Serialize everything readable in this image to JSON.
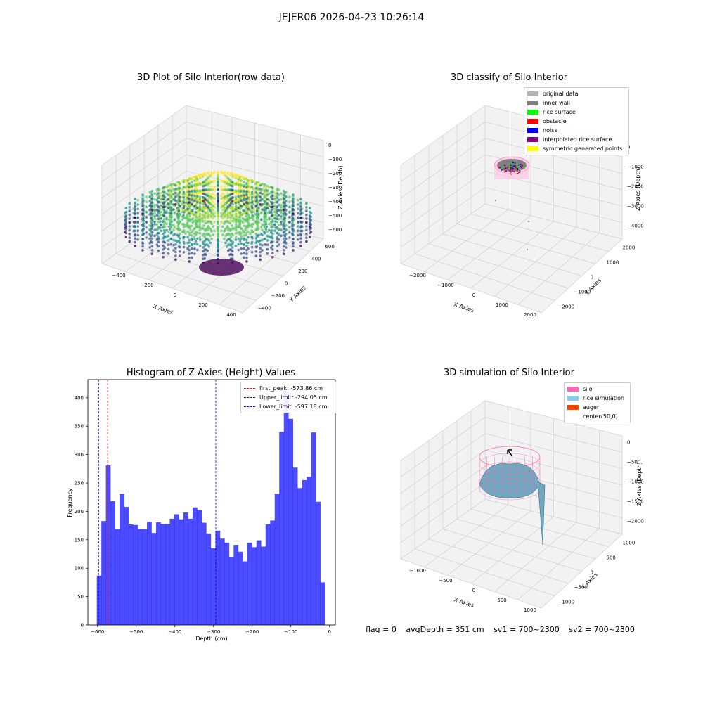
{
  "suptitle": "JEJER06 2026-04-23 10:26:14",
  "panels": {
    "raw": {
      "title": "3D Plot of Silo Interior(row data)",
      "xlabel": "X Axies",
      "ylabel": "Y Axies",
      "zlabel": "Z Axies (Depth)",
      "xticks": [
        "−400",
        "−200",
        "0",
        "200",
        "400"
      ],
      "yticks": [
        "−400",
        "−200",
        "0",
        "200",
        "400",
        "600"
      ],
      "zticks": [
        "0",
        "−100",
        "−200",
        "−300",
        "−400",
        "−500",
        "−600"
      ]
    },
    "classify": {
      "title": "3D classify of Silo Interior",
      "xlabel": "X Axies",
      "ylabel": "Y Axies",
      "zlabel": "Z Axies (Depth)",
      "xticks": [
        "−2000",
        "−1000",
        "0",
        "1000",
        "2000"
      ],
      "yticks": [
        "−2000",
        "−1000",
        "0",
        "1000",
        "2000"
      ],
      "zticks": [
        "0",
        "−1000",
        "−2000",
        "−3000",
        "−4000"
      ],
      "legend": [
        {
          "label": "original data",
          "color": "#b3b3b3"
        },
        {
          "label": "inner wall",
          "color": "#808080"
        },
        {
          "label": "rice surface",
          "color": "#00ff00"
        },
        {
          "label": "obstacle",
          "color": "#ff0000"
        },
        {
          "label": "noise",
          "color": "#0000ff"
        },
        {
          "label": "interpolated rice surface",
          "color": "#800080"
        },
        {
          "label": "symmetric generated points",
          "color": "#ffff00"
        }
      ]
    },
    "simulation": {
      "title": "3D simulation of Silo Interior",
      "xlabel": "X Axies",
      "ylabel": "Y Axies",
      "zlabel": "Z Axies (Depth)",
      "xticks": [
        "−1000",
        "−500",
        "0",
        "500",
        "1000"
      ],
      "yticks": [
        "−1000",
        "−500",
        "0",
        "500",
        "1000"
      ],
      "zticks": [
        "0",
        "−500",
        "−1000",
        "−1500",
        "−2000"
      ],
      "legend": [
        {
          "label": "silo",
          "color": "#ff69b4"
        },
        {
          "label": "rice simulation",
          "color": "#87ceeb"
        },
        {
          "label": "auger",
          "color": "#ff4500"
        },
        {
          "label": "center(50,0)",
          "color": "#ffffff"
        }
      ]
    }
  },
  "status": {
    "flag": "flag = 0",
    "avg": "avgDepth = 351 cm",
    "sv1": "sv1 = 700~2300",
    "sv2": "sv2 = 700~2300"
  },
  "chart_data": [
    {
      "type": "bar",
      "title": "Histogram of Z-Axies (Height) Values",
      "xlabel": "Depth (cm)",
      "ylabel": "Frequency",
      "bar_color": "#0000ff",
      "xlim": [
        -625,
        15
      ],
      "ylim": [
        0,
        432
      ],
      "xticks": [
        -600,
        -500,
        -400,
        -300,
        -200,
        -100,
        0
      ],
      "yticks": [
        0,
        50,
        100,
        150,
        200,
        250,
        300,
        350,
        400
      ],
      "bin_start": -602,
      "bin_width": 11.8,
      "values": [
        87,
        183,
        281,
        218,
        169,
        231,
        208,
        177,
        176,
        169,
        169,
        182,
        162,
        181,
        178,
        178,
        187,
        195,
        186,
        198,
        187,
        207,
        202,
        180,
        161,
        135,
        166,
        152,
        145,
        120,
        141,
        129,
        112,
        145,
        137,
        149,
        138,
        177,
        184,
        231,
        340,
        412,
        363,
        277,
        241,
        255,
        261,
        339,
        217,
        75
      ],
      "lines": [
        {
          "label": "first_peak: -573.86 cm",
          "x": -573.86,
          "color": "#ff0000"
        },
        {
          "label": "Upper_limit: -294.05 cm",
          "x": -294.05,
          "color": "#0000ff"
        },
        {
          "label": "Lower_limit: -597.18 cm",
          "x": -597.18,
          "color": "#0000ff"
        }
      ],
      "legend_position": "top-right"
    }
  ]
}
